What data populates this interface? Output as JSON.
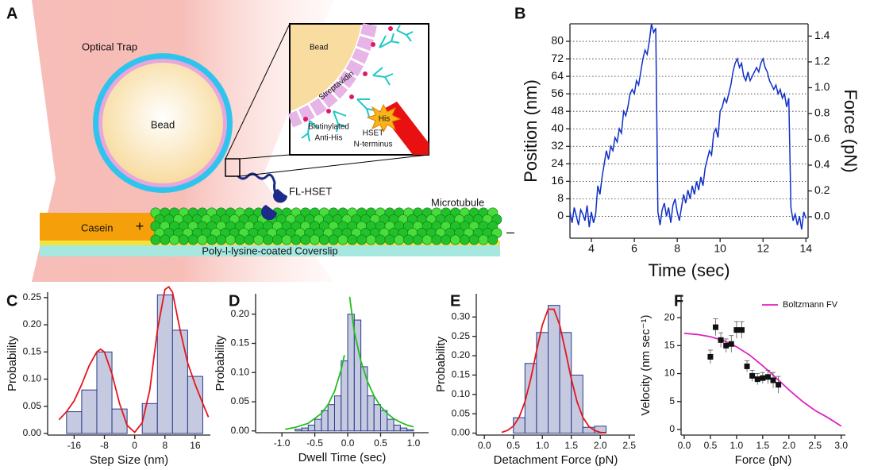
{
  "panels": [
    "A",
    "B",
    "C",
    "D",
    "E",
    "F"
  ],
  "diagram": {
    "trap": "Optical Trap",
    "bead": "Bead",
    "inset_bead": "Bead",
    "streptavidin": "Streptavidin",
    "his": "His",
    "antibody": [
      "Biotinylated",
      "Anti-His"
    ],
    "hset": [
      "HSET",
      "N-terminus"
    ],
    "motor": "FL-HSET",
    "microtubule": "Microtubule",
    "casein": "Casein",
    "plus_end": "+",
    "minus_end": "–",
    "coverslip": "Poly-l-lysine-coated Coverslip"
  },
  "chart_data": [
    {
      "type": "line",
      "xlabel": "Time (sec)",
      "ylabel": "Position (nm)",
      "y2label": "Force (pN)",
      "xlim": [
        3,
        14.1
      ],
      "ylim": [
        -10,
        88
      ],
      "y2lim": [
        -0.166,
        1.495
      ],
      "grid": true,
      "xticks": [
        4,
        6,
        8,
        10,
        12,
        14
      ],
      "yticks": [
        0,
        8,
        16,
        24,
        32,
        40,
        48,
        56,
        64,
        72,
        80
      ],
      "y2ticks": [
        {
          "value": 0,
          "label": "0.0"
        },
        {
          "value": 0.2,
          "label": "0.2"
        },
        {
          "value": 0.4,
          "label": "0.4"
        },
        {
          "value": 0.6,
          "label": "0.6"
        },
        {
          "value": 0.8,
          "label": "0.8"
        },
        {
          "value": 1.0,
          "label": "1.0"
        },
        {
          "value": 1.2,
          "label": "1.2"
        },
        {
          "value": 1.4,
          "label": "1.4"
        }
      ],
      "x": [
        3.0,
        3.1,
        3.2,
        3.3,
        3.4,
        3.5,
        3.6,
        3.7,
        3.8,
        3.9,
        4.0,
        4.1,
        4.2,
        4.3,
        4.4,
        4.5,
        4.6,
        4.7,
        4.8,
        4.9,
        5.0,
        5.1,
        5.2,
        5.3,
        5.4,
        5.5,
        5.6,
        5.7,
        5.8,
        5.9,
        6.0,
        6.1,
        6.2,
        6.3,
        6.4,
        6.5,
        6.6,
        6.7,
        6.8,
        6.9,
        7.0,
        7.1,
        7.2,
        7.3,
        7.4,
        7.5,
        7.6,
        7.7,
        7.8,
        7.9,
        8.0,
        8.1,
        8.2,
        8.3,
        8.4,
        8.5,
        8.6,
        8.7,
        8.8,
        8.9,
        9.0,
        9.1,
        9.2,
        9.3,
        9.4,
        9.5,
        9.6,
        9.7,
        9.8,
        9.9,
        10.0,
        10.1,
        10.2,
        10.3,
        10.4,
        10.5,
        10.6,
        10.7,
        10.8,
        10.9,
        11.0,
        11.1,
        11.2,
        11.3,
        11.4,
        11.5,
        11.6,
        11.7,
        11.8,
        11.9,
        12.0,
        12.1,
        12.2,
        12.3,
        12.4,
        12.5,
        12.6,
        12.7,
        12.8,
        12.9,
        13.0,
        13.1,
        13.2,
        13.3,
        13.4,
        13.5,
        13.6,
        13.7,
        13.8,
        13.9,
        14.0
      ],
      "series": [
        {
          "color": "#1030c8",
          "values": [
            2,
            -3,
            4,
            0,
            -4,
            3,
            1,
            -2,
            5,
            -5,
            2,
            -3,
            1,
            14,
            10,
            18,
            24,
            30,
            26,
            32,
            30,
            36,
            34,
            40,
            38,
            48,
            46,
            50,
            56,
            58,
            56,
            62,
            60,
            66,
            72,
            76,
            74,
            80,
            88,
            84,
            86,
            2,
            -4,
            3,
            6,
            0,
            4,
            -3,
            5,
            8,
            2,
            -2,
            4,
            10,
            6,
            12,
            8,
            14,
            10,
            16,
            12,
            18,
            14,
            22,
            26,
            30,
            28,
            38,
            40,
            36,
            48,
            50,
            54,
            52,
            56,
            60,
            66,
            70,
            72,
            68,
            70,
            64,
            62,
            66,
            62,
            64,
            66,
            68,
            66,
            70,
            72,
            68,
            66,
            62,
            60,
            58,
            60,
            56,
            58,
            54,
            56,
            50,
            54,
            4,
            -2,
            1,
            -4,
            0,
            -6,
            2,
            -1
          ]
        }
      ]
    },
    {
      "type": "histogram",
      "xlabel": "Step Size (nm)",
      "ylabel": "Probability",
      "xlim": [
        -23,
        20
      ],
      "ylim": [
        -0.003,
        0.26
      ],
      "xticks": [
        -16,
        -8,
        0,
        8,
        16
      ],
      "yticks": [
        {
          "value": 0,
          "label": "0.00"
        },
        {
          "value": 0.05,
          "label": "0.05"
        },
        {
          "value": 0.1,
          "label": "0.10"
        },
        {
          "value": 0.15,
          "label": "0.15"
        },
        {
          "value": 0.2,
          "label": "0.20"
        },
        {
          "value": 0.25,
          "label": "0.25"
        }
      ],
      "color": "#c5cae0",
      "edge_color": "#2a3a8c",
      "bins": [
        -18,
        -14,
        -10,
        -6,
        -2,
        2,
        6,
        10,
        14,
        18
      ],
      "counts": [
        0.04,
        0.08,
        0.15,
        0.045,
        0,
        0.055,
        0.255,
        0.19,
        0.105
      ],
      "curves": [
        {
          "color": "#e8141c",
          "x": [
            -20,
            -18,
            -16,
            -14,
            -12,
            -10,
            -9,
            -8,
            -6,
            -4,
            -2,
            0,
            2,
            4,
            6,
            8,
            9,
            10,
            12,
            14,
            16,
            18,
            19.5
          ],
          "values": [
            0.025,
            0.04,
            0.06,
            0.09,
            0.125,
            0.15,
            0.155,
            0.15,
            0.11,
            0.055,
            0.015,
            0.002,
            0.02,
            0.08,
            0.19,
            0.265,
            0.27,
            0.26,
            0.19,
            0.13,
            0.09,
            0.055,
            0.03
          ]
        }
      ]
    },
    {
      "type": "histogram",
      "xlabel": "Dwell Time (sec)",
      "ylabel": "Probability",
      "xlim": [
        -1.4,
        1.23
      ],
      "ylim": [
        -0.003,
        0.235
      ],
      "xticks": [
        {
          "value": -1,
          "label": "-1.0"
        },
        {
          "value": -0.5,
          "label": "-0.5"
        },
        {
          "value": 0,
          "label": "0.0"
        },
        {
          "value": 0.5,
          "label": "0.5"
        },
        {
          "value": 1,
          "label": "1.0"
        }
      ],
      "yticks": [
        {
          "value": 0,
          "label": "0.00"
        },
        {
          "value": 0.05,
          "label": "0.05"
        },
        {
          "value": 0.1,
          "label": "0.10"
        },
        {
          "value": 0.15,
          "label": "0.15"
        },
        {
          "value": 0.2,
          "label": "0.20"
        }
      ],
      "color": "#c5cae0",
      "edge_color": "#2a3a8c",
      "bins": [
        -0.8,
        -0.7,
        -0.6,
        -0.5,
        -0.4,
        -0.3,
        -0.2,
        -0.1,
        0,
        0.1,
        0.2,
        0.3,
        0.4,
        0.5,
        0.6,
        0.7,
        0.8,
        0.9,
        1.0
      ],
      "counts": [
        0.003,
        0.005,
        0.01,
        0.02,
        0.035,
        0.045,
        0.06,
        0.12,
        0.2,
        0.19,
        0.11,
        0.06,
        0.045,
        0.035,
        0.02,
        0.01,
        0.005,
        0.002
      ],
      "curves": [
        {
          "color": "#22c020",
          "x": [
            -0.95,
            -0.8,
            -0.6,
            -0.4,
            -0.3,
            -0.2,
            -0.1,
            -0.05
          ],
          "values": [
            0.003,
            0.006,
            0.013,
            0.03,
            0.045,
            0.068,
            0.105,
            0.13
          ]
        },
        {
          "color": "#22c020",
          "x": [
            0.03,
            0.1,
            0.2,
            0.3,
            0.4,
            0.5,
            0.6,
            0.7,
            0.8,
            0.9,
            1.0
          ],
          "values": [
            0.23,
            0.17,
            0.12,
            0.085,
            0.06,
            0.042,
            0.03,
            0.021,
            0.015,
            0.01,
            0.007
          ]
        }
      ]
    },
    {
      "type": "histogram",
      "xlabel": "Detachment Force (pN)",
      "ylabel": "Probability",
      "xlim": [
        -0.14,
        2.6
      ],
      "ylim": [
        -0.005,
        0.36
      ],
      "xticks": [
        {
          "value": 0,
          "label": "0.0"
        },
        {
          "value": 0.5,
          "label": "0.5"
        },
        {
          "value": 1,
          "label": "1.0"
        },
        {
          "value": 1.5,
          "label": "1.5"
        },
        {
          "value": 2,
          "label": "2.0"
        },
        {
          "value": 2.5,
          "label": "2.5"
        }
      ],
      "yticks": [
        {
          "value": 0,
          "label": "0.00"
        },
        {
          "value": 0.05,
          "label": "0.05"
        },
        {
          "value": 0.1,
          "label": "0.10"
        },
        {
          "value": 0.15,
          "label": "0.15"
        },
        {
          "value": 0.2,
          "label": "0.20"
        },
        {
          "value": 0.25,
          "label": "0.25"
        },
        {
          "value": 0.3,
          "label": "0.30"
        }
      ],
      "color": "#c5cae0",
      "edge_color": "#2a3a8c",
      "bins": [
        0.5,
        0.7,
        0.9,
        1.1,
        1.3,
        1.5,
        1.7,
        1.9,
        2.1
      ],
      "counts": [
        0.04,
        0.18,
        0.26,
        0.33,
        0.26,
        0.15,
        0.015,
        0.018
      ],
      "curves": [
        {
          "color": "#e8141c",
          "x": [
            0.3,
            0.4,
            0.5,
            0.6,
            0.7,
            0.8,
            0.9,
            1.0,
            1.1,
            1.2,
            1.3,
            1.4,
            1.5,
            1.6,
            1.7,
            1.8,
            1.9,
            2.0,
            2.1
          ],
          "values": [
            0.002,
            0.007,
            0.018,
            0.041,
            0.081,
            0.14,
            0.212,
            0.279,
            0.32,
            0.32,
            0.279,
            0.212,
            0.14,
            0.081,
            0.041,
            0.018,
            0.007,
            0.002,
            0.001
          ]
        }
      ]
    },
    {
      "type": "scatter",
      "xlabel": "Force (pN)",
      "ylabel": "Velocity (nm sec⁻¹)",
      "xlim": [
        -0.06,
        3.08
      ],
      "ylim": [
        -1,
        24
      ],
      "legend": "upper right",
      "xticks": [
        {
          "value": 0,
          "label": "0.0"
        },
        {
          "value": 0.5,
          "label": "0.5"
        },
        {
          "value": 1,
          "label": "1.0"
        },
        {
          "value": 1.5,
          "label": "1.5"
        },
        {
          "value": 2,
          "label": "2.0"
        },
        {
          "value": 2.5,
          "label": "2.5"
        },
        {
          "value": 3,
          "label": "3.0"
        }
      ],
      "yticks": [
        0,
        5,
        10,
        15,
        20
      ],
      "color": "#111111",
      "x": [
        0.5,
        0.6,
        0.7,
        0.8,
        0.9,
        1.0,
        1.1,
        1.2,
        1.3,
        1.4,
        1.5,
        1.6,
        1.7,
        1.8
      ],
      "values": [
        13,
        18.3,
        16,
        15,
        15.3,
        17.8,
        17.8,
        11.3,
        9.6,
        9.0,
        9.2,
        9.4,
        8.8,
        8.0
      ],
      "errors": [
        1.2,
        1.5,
        1.3,
        1.2,
        1.5,
        1.5,
        1.5,
        1,
        1,
        1,
        1,
        1.2,
        1.4,
        1.5
      ],
      "curves": [
        {
          "name": "Boltzmann FV",
          "color": "#e020c0",
          "x": [
            0,
            0.25,
            0.5,
            0.75,
            1.0,
            1.25,
            1.5,
            1.75,
            2.0,
            2.25,
            2.5,
            2.75,
            3.0
          ],
          "values": [
            17.2,
            17.0,
            16.6,
            15.9,
            14.8,
            13.3,
            11.4,
            9.3,
            7.1,
            5.1,
            3.4,
            2.1,
            0.6
          ]
        }
      ]
    }
  ]
}
